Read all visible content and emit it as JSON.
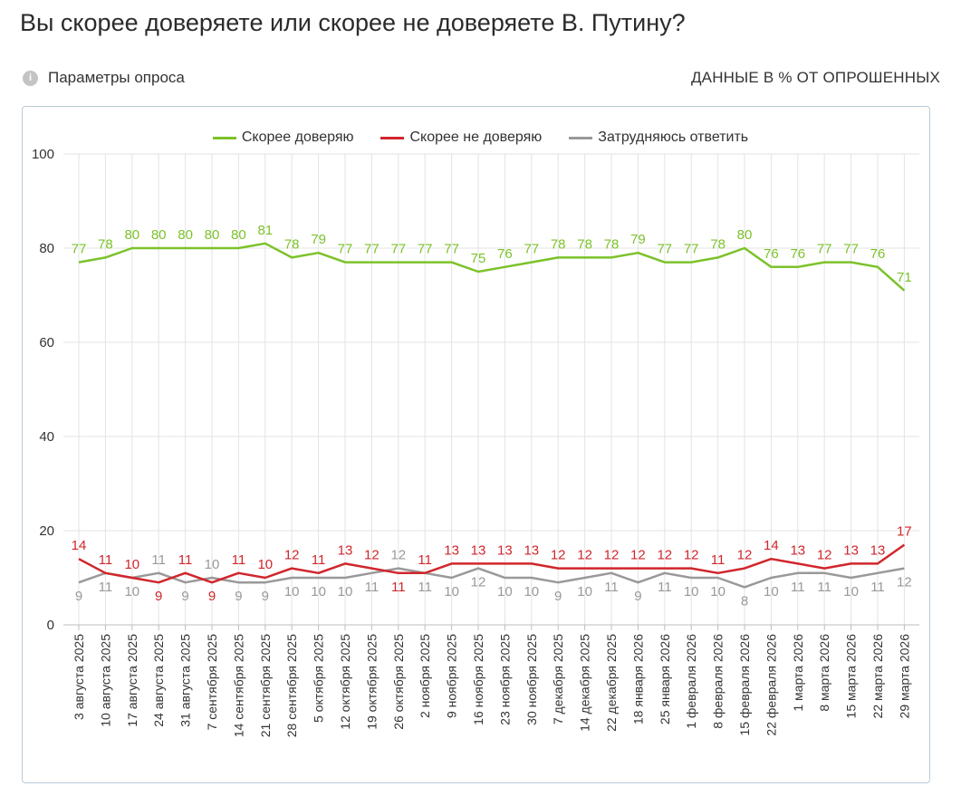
{
  "header": {
    "title": "Вы скорее доверяете или скорее не доверяете В. Путину?",
    "params_label": "Параметры опроса",
    "info_icon_glyph": "i",
    "units_label": "ДАННЫЕ В % ОТ ОПРОШЕННЫХ"
  },
  "chart_data": {
    "type": "line",
    "x": [
      "3 августа 2025",
      "10 августа 2025",
      "17 августа 2025",
      "24 августа 2025",
      "31 августа 2025",
      "7 сентября 2025",
      "14 сентября 2025",
      "21 сентября 2025",
      "28 сентября 2025",
      "5 октября 2025",
      "12 октября 2025",
      "19 октября 2025",
      "26 октября 2025",
      "2 ноября 2025",
      "9 ноября 2025",
      "16 ноября 2025",
      "23 ноября 2025",
      "30 ноября 2025",
      "7 декабря 2025",
      "14 декабря 2025",
      "22 декабря 2025",
      "18 января 2026",
      "25 января 2026",
      "1 февраля 2026",
      "8 февраля 2026",
      "15 февраля 2026",
      "22 февраля 2026",
      "1 марта 2026",
      "8 марта 2026",
      "15 марта 2026",
      "22 марта 2026",
      "29 марта 2026"
    ],
    "series": [
      {
        "name": "Скорее доверяю",
        "color": "#7cc22a",
        "values": [
          77,
          78,
          80,
          80,
          80,
          80,
          80,
          81,
          78,
          79,
          77,
          77,
          77,
          77,
          77,
          75,
          76,
          77,
          78,
          78,
          78,
          79,
          77,
          77,
          78,
          80,
          76,
          76,
          77,
          77,
          76,
          71
        ]
      },
      {
        "name": "Скорее не доверяю",
        "color": "#d0262c",
        "values": [
          14,
          11,
          10,
          9,
          11,
          9,
          11,
          10,
          12,
          11,
          13,
          12,
          11,
          11,
          13,
          13,
          13,
          13,
          12,
          12,
          12,
          12,
          12,
          12,
          11,
          12,
          14,
          13,
          12,
          13,
          13,
          17
        ]
      },
      {
        "name": "Затрудняюсь ответить",
        "color": "#999999",
        "values": [
          9,
          11,
          10,
          11,
          9,
          10,
          9,
          9,
          10,
          10,
          10,
          11,
          12,
          11,
          10,
          12,
          10,
          10,
          9,
          10,
          11,
          9,
          11,
          10,
          10,
          8,
          10,
          11,
          11,
          10,
          11,
          12
        ]
      }
    ],
    "ylim": [
      0,
      100
    ],
    "yticks": [
      0,
      20,
      40,
      60,
      80,
      100
    ],
    "grid": true,
    "legend": "top-center",
    "data_labels": true
  }
}
